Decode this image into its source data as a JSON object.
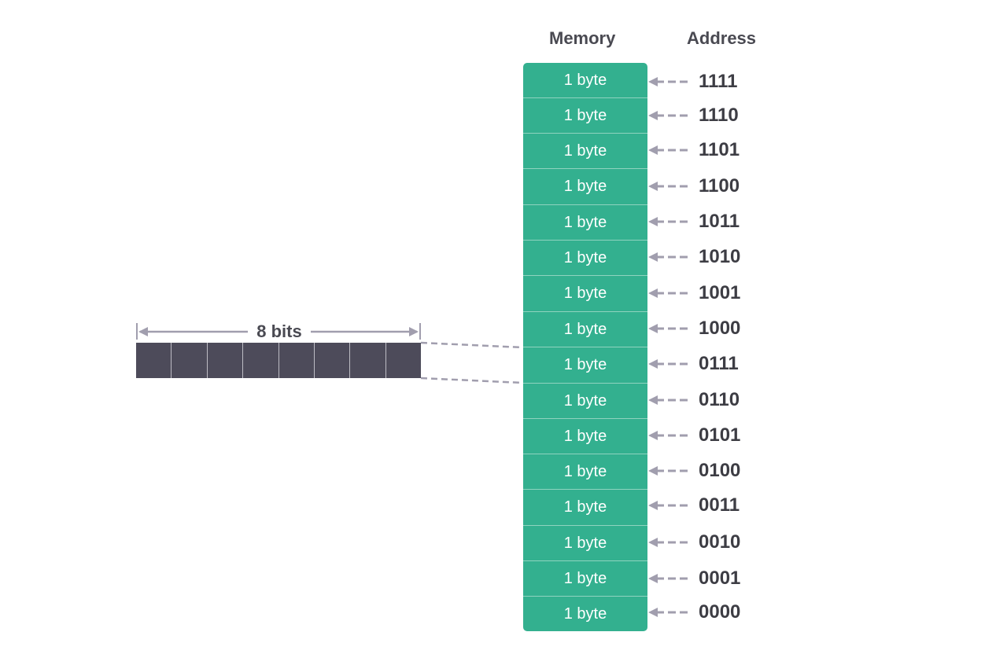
{
  "headers": {
    "memory": "Memory",
    "address": "Address"
  },
  "cell_label": "1 byte",
  "addresses": [
    "1111",
    "1110",
    "1101",
    "1100",
    "1011",
    "1010",
    "1001",
    "1000",
    "0111",
    "0110",
    "0101",
    "0100",
    "0011",
    "0010",
    "0001",
    "0000"
  ],
  "byte_detail": {
    "label": "8 bits",
    "bit_count": 8
  },
  "colors": {
    "memory_cell": "#33b08f",
    "bit_cell": "#4d4b5a",
    "arrow": "#a19eae",
    "text": "#3d3d44"
  },
  "icons": {
    "pointer": "dashed-left-arrow",
    "span": "double-headed-arrow"
  }
}
